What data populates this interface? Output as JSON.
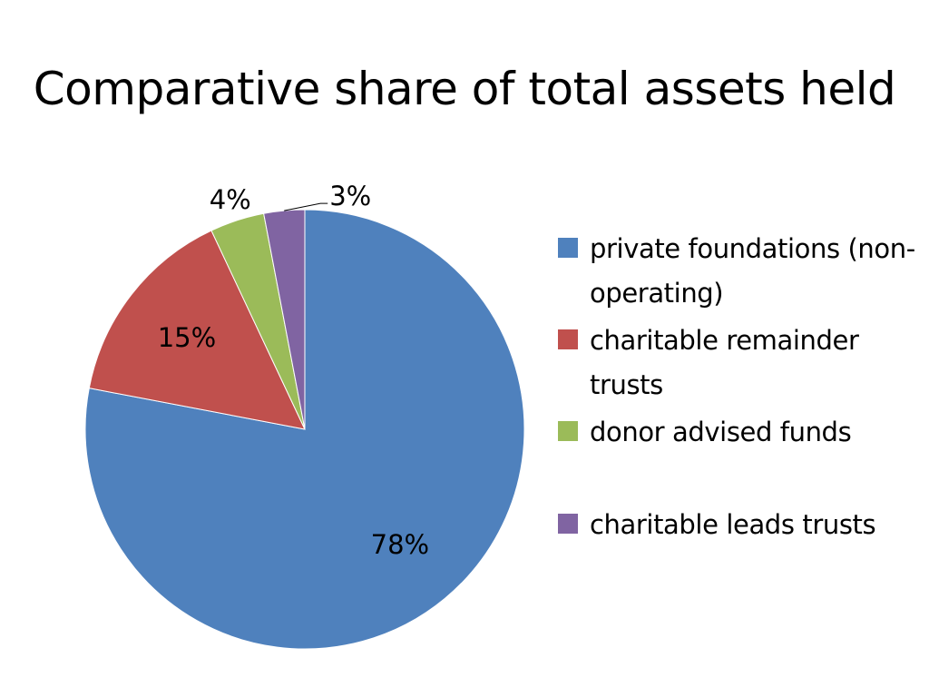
{
  "chart_data": {
    "type": "pie",
    "title": "Comparative share of total assets held",
    "categories": [
      "private foundations (non-operating)",
      "charitable remainder trusts",
      "donor advised funds",
      "charitable leads trusts"
    ],
    "values": [
      78,
      15,
      4,
      3
    ],
    "labels": [
      "78%",
      "15%",
      "4%",
      "3%"
    ],
    "colors": [
      "#4f81bd",
      "#c0504d",
      "#9bbb59",
      "#8064a2"
    ],
    "legend_position": "right"
  }
}
